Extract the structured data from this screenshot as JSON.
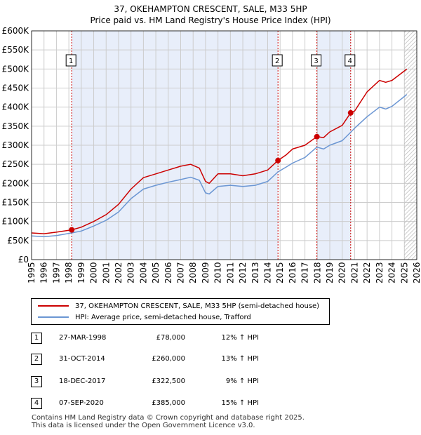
{
  "title_line1": "37, OKEHAMPTON CRESCENT, SALE, M33 5HP",
  "title_line2": "Price paid vs. HM Land Registry's House Price Index (HPI)",
  "colors": {
    "price_line": "#cc0000",
    "hpi_line": "#6b96d3",
    "shade": "#e8eefa",
    "grid": "#cccccc",
    "marker_vline": "#cc0000"
  },
  "chart_data": {
    "type": "line",
    "title": "Price paid vs. HM Land Registry's House Price Index (HPI)",
    "xlabel": "",
    "ylabel": "",
    "xlim": [
      1995,
      2026
    ],
    "ylim": [
      0,
      600000
    ],
    "x_ticks": [
      "1995",
      "1996",
      "1997",
      "1998",
      "1999",
      "2000",
      "2001",
      "2002",
      "2003",
      "2004",
      "2005",
      "2006",
      "2007",
      "2008",
      "2009",
      "2010",
      "2011",
      "2012",
      "2013",
      "2014",
      "2015",
      "2016",
      "2017",
      "2018",
      "2019",
      "2020",
      "2021",
      "2022",
      "2023",
      "2024",
      "2025",
      "2026"
    ],
    "y_ticks": [
      {
        "value": 0,
        "label": "£0"
      },
      {
        "value": 50000,
        "label": "£50K"
      },
      {
        "value": 100000,
        "label": "£100K"
      },
      {
        "value": 150000,
        "label": "£150K"
      },
      {
        "value": 200000,
        "label": "£200K"
      },
      {
        "value": 250000,
        "label": "£250K"
      },
      {
        "value": 300000,
        "label": "£300K"
      },
      {
        "value": 350000,
        "label": "£350K"
      },
      {
        "value": 400000,
        "label": "£400K"
      },
      {
        "value": 450000,
        "label": "£450K"
      },
      {
        "value": 500000,
        "label": "£500K"
      },
      {
        "value": 550000,
        "label": "£550K"
      },
      {
        "value": 600000,
        "label": "£600K"
      }
    ],
    "series": [
      {
        "name": "37, OKEHAMPTON CRESCENT, SALE, M33 5HP (semi-detached house)",
        "x": [
          1995.0,
          1996.0,
          1997.0,
          1998.23,
          1999.0,
          2000.0,
          2001.0,
          2002.0,
          2003.0,
          2004.0,
          2005.0,
          2006.0,
          2007.0,
          2007.8,
          2008.5,
          2009.0,
          2009.3,
          2010.0,
          2011.0,
          2012.0,
          2013.0,
          2014.0,
          2014.83,
          2015.5,
          2016.0,
          2017.0,
          2017.96,
          2018.5,
          2019.0,
          2020.0,
          2020.68,
          2021.0,
          2022.0,
          2023.0,
          2023.5,
          2024.0,
          2025.0,
          2025.2
        ],
        "y": [
          70000,
          68000,
          72000,
          78000,
          85000,
          100000,
          118000,
          145000,
          185000,
          215000,
          225000,
          235000,
          245000,
          250000,
          240000,
          205000,
          200000,
          225000,
          225000,
          220000,
          225000,
          235000,
          260000,
          275000,
          290000,
          300000,
          322500,
          320000,
          335000,
          352000,
          385000,
          390000,
          440000,
          470000,
          465000,
          470000,
          495000,
          500000
        ]
      },
      {
        "name": "HPI: Average price, semi-detached house, Trafford",
        "x": [
          1995.0,
          1996.0,
          1997.0,
          1998.23,
          1999.0,
          2000.0,
          2001.0,
          2002.0,
          2003.0,
          2004.0,
          2005.0,
          2006.0,
          2007.0,
          2007.8,
          2008.5,
          2009.0,
          2009.3,
          2010.0,
          2011.0,
          2012.0,
          2013.0,
          2014.0,
          2014.83,
          2015.5,
          2016.0,
          2017.0,
          2017.96,
          2018.5,
          2019.0,
          2020.0,
          2020.68,
          2021.0,
          2022.0,
          2023.0,
          2023.5,
          2024.0,
          2025.0,
          2025.2
        ],
        "y": [
          62000,
          60000,
          63000,
          70000,
          75000,
          88000,
          103000,
          125000,
          160000,
          185000,
          195000,
          203000,
          210000,
          216000,
          208000,
          175000,
          172000,
          192000,
          195000,
          192000,
          195000,
          205000,
          230000,
          243000,
          253000,
          268000,
          295000,
          290000,
          300000,
          312000,
          334000,
          345000,
          375000,
          400000,
          395000,
          402000,
          428000,
          433000
        ]
      }
    ],
    "sales": [
      {
        "label": "1",
        "x": 1998.23,
        "y": 78000
      },
      {
        "label": "2",
        "x": 2014.83,
        "y": 260000
      },
      {
        "label": "3",
        "x": 2017.96,
        "y": 322500
      },
      {
        "label": "4",
        "x": 2020.68,
        "y": 385000
      }
    ],
    "shaded_ranges": [
      [
        1998.23,
        2014.83
      ],
      [
        2017.96,
        2020.68
      ]
    ],
    "hatch_from": 2025.0
  },
  "legend": {
    "price_label": "37, OKEHAMPTON CRESCENT, SALE, M33 5HP (semi-detached house)",
    "hpi_label": "HPI: Average price, semi-detached house, Trafford"
  },
  "sales_table": [
    {
      "num": "1",
      "date": "27-MAR-1998",
      "price": "£78,000",
      "hpi": "12% ↑ HPI"
    },
    {
      "num": "2",
      "date": "31-OCT-2014",
      "price": "£260,000",
      "hpi": "13% ↑ HPI"
    },
    {
      "num": "3",
      "date": "18-DEC-2017",
      "price": "£322,500",
      "hpi": "9% ↑ HPI"
    },
    {
      "num": "4",
      "date": "07-SEP-2020",
      "price": "£385,000",
      "hpi": "15% ↑ HPI"
    }
  ],
  "footer": {
    "line1": "Contains HM Land Registry data © Crown copyright and database right 2025.",
    "line2": "This data is licensed under the Open Government Licence v3.0."
  }
}
